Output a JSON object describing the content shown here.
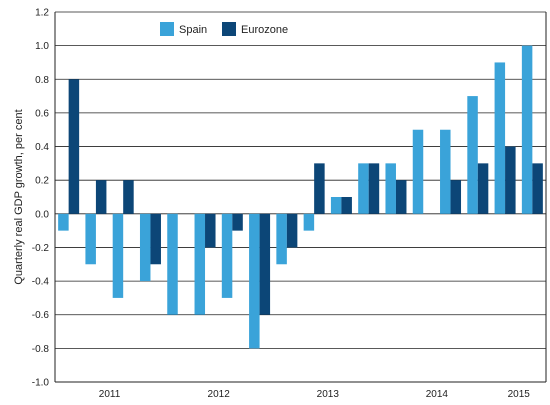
{
  "chart_data": {
    "type": "bar",
    "title": "",
    "xlabel": "",
    "ylabel": "Quarterly real GDP growth, per cent",
    "ylim": [
      -1.0,
      1.2
    ],
    "yticks": [
      "1.2",
      "1.0",
      "0.8",
      "0.6",
      "0.4",
      "0.2",
      "0.0",
      "-0.2",
      "-0.4",
      "-0.6",
      "-0.8",
      "-1.0"
    ],
    "x_group_labels": [
      "2011",
      "2012",
      "2013",
      "2014",
      "2015"
    ],
    "categories": [
      "2011 Q1",
      "2011 Q2",
      "2011 Q3",
      "2011 Q4",
      "2012 Q1",
      "2012 Q2",
      "2012 Q3",
      "2012 Q4",
      "2013 Q1",
      "2013 Q2",
      "2013 Q3",
      "2013 Q4",
      "2014 Q1",
      "2014 Q2",
      "2014 Q3",
      "2014 Q4",
      "2015 Q1",
      "2015 Q2"
    ],
    "series": [
      {
        "name": "Spain",
        "color": "#3aa3d9",
        "values": [
          -0.1,
          -0.3,
          -0.5,
          -0.4,
          -0.6,
          -0.6,
          -0.5,
          -0.8,
          -0.3,
          -0.1,
          0.1,
          0.3,
          0.3,
          0.5,
          0.5,
          0.7,
          0.9,
          1.0
        ]
      },
      {
        "name": "Eurozone",
        "color": "#0c4677",
        "values": [
          0.8,
          0.2,
          0.2,
          -0.3,
          0.0,
          -0.2,
          -0.1,
          -0.6,
          -0.2,
          0.3,
          0.1,
          0.3,
          0.2,
          0.0,
          0.2,
          0.3,
          0.4,
          0.3
        ]
      }
    ],
    "grid": true,
    "legend_position": "top-left"
  }
}
